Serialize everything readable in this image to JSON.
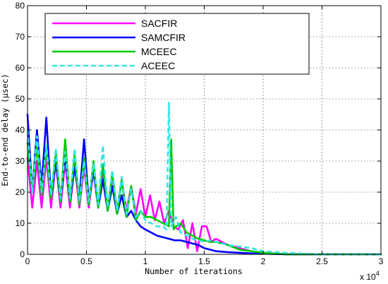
{
  "chart_data": {
    "type": "line",
    "title": "",
    "xlabel": "Number of iterations",
    "ylabel": "End-to-end delay  (μsec)",
    "x_multiplier": "x 10",
    "x_multiplier_exp": "4",
    "xlim": [
      0,
      3
    ],
    "ylim": [
      0,
      80
    ],
    "xticks": [
      0,
      0.5,
      1,
      1.5,
      2,
      2.5,
      3
    ],
    "xtick_labels": [
      "0",
      "0.5",
      "1",
      "1.5",
      "2",
      "2.5",
      "3"
    ],
    "yticks": [
      0,
      10,
      20,
      30,
      40,
      50,
      60,
      70,
      80
    ],
    "ytick_labels": [
      "0",
      "10",
      "20",
      "30",
      "40",
      "50",
      "60",
      "70",
      "80"
    ],
    "grid": true,
    "legend_position": "top-left",
    "series": [
      {
        "name": "SACFIR",
        "color": "#ff00ff",
        "dash": "solid",
        "x": [
          0,
          0.04,
          0.08,
          0.12,
          0.16,
          0.2,
          0.24,
          0.28,
          0.32,
          0.36,
          0.4,
          0.44,
          0.48,
          0.52,
          0.56,
          0.6,
          0.64,
          0.68,
          0.72,
          0.76,
          0.8,
          0.84,
          0.88,
          0.92,
          0.96,
          1.0,
          1.04,
          1.08,
          1.12,
          1.16,
          1.2,
          1.24,
          1.28,
          1.32,
          1.36,
          1.4,
          1.44,
          1.48,
          1.52,
          1.56,
          1.6,
          1.7,
          1.8,
          1.9,
          2.0,
          2.2,
          2.5,
          3.0
        ],
        "y": [
          31,
          15,
          30,
          15,
          31,
          15,
          30,
          15,
          30,
          15,
          29,
          15,
          28,
          15,
          27,
          16,
          26,
          15,
          25,
          14,
          24,
          14,
          22,
          13,
          21,
          12,
          19,
          11,
          17,
          10,
          14,
          9,
          8,
          11,
          2,
          10,
          1,
          9,
          9,
          4,
          5,
          3,
          2,
          1,
          0.5,
          0,
          0,
          0
        ]
      },
      {
        "name": "SAMCFIR",
        "color": "#0000ff",
        "dash": "solid",
        "x": [
          0,
          0.04,
          0.08,
          0.12,
          0.16,
          0.2,
          0.24,
          0.28,
          0.32,
          0.36,
          0.4,
          0.44,
          0.48,
          0.52,
          0.56,
          0.6,
          0.64,
          0.68,
          0.72,
          0.76,
          0.8,
          0.84,
          0.88,
          0.92,
          0.96,
          1.0,
          1.05,
          1.1,
          1.15,
          1.2,
          1.25,
          1.3,
          1.35,
          1.4,
          1.45,
          1.5,
          1.55,
          1.6,
          1.7,
          1.8,
          1.9,
          2.0,
          2.2,
          2.5,
          3.0
        ],
        "y": [
          45,
          20,
          40,
          22,
          44,
          18,
          30,
          17,
          32,
          17,
          28,
          18,
          37,
          17,
          27,
          15,
          24,
          14,
          22,
          13,
          19,
          12,
          14,
          11,
          9,
          8,
          7,
          6,
          5.5,
          5,
          4.5,
          4.5,
          4,
          3.5,
          3,
          2,
          1.5,
          1,
          0.7,
          0.5,
          0.3,
          0.2,
          0,
          0,
          0
        ]
      },
      {
        "name": "MCEEC",
        "color": "#00cc00",
        "dash": "solid",
        "x": [
          0,
          0.04,
          0.08,
          0.12,
          0.16,
          0.2,
          0.24,
          0.28,
          0.32,
          0.36,
          0.4,
          0.44,
          0.48,
          0.52,
          0.56,
          0.6,
          0.64,
          0.68,
          0.72,
          0.76,
          0.8,
          0.84,
          0.88,
          0.92,
          0.96,
          1.0,
          1.05,
          1.1,
          1.15,
          1.2,
          1.22,
          1.24,
          1.26,
          1.3,
          1.35,
          1.4,
          1.45,
          1.5,
          1.55,
          1.6,
          1.65,
          1.7,
          1.8,
          1.9,
          2.0,
          2.2,
          2.5,
          3.0
        ],
        "y": [
          36,
          20,
          35,
          19,
          34,
          18,
          33,
          17,
          37,
          17,
          32,
          16,
          31,
          16,
          30,
          15,
          29,
          14,
          26,
          13,
          24,
          12,
          22,
          11,
          14,
          12,
          12,
          11,
          10,
          9,
          37,
          8,
          9,
          10,
          7,
          6,
          5,
          4.5,
          4,
          4,
          3.5,
          3,
          1.5,
          1,
          0.5,
          0,
          0,
          0
        ]
      },
      {
        "name": "ACEEC",
        "color": "#33e6e6",
        "dash": "dashed",
        "x": [
          0,
          0.04,
          0.08,
          0.12,
          0.16,
          0.2,
          0.24,
          0.28,
          0.32,
          0.36,
          0.4,
          0.44,
          0.48,
          0.52,
          0.56,
          0.6,
          0.64,
          0.68,
          0.72,
          0.76,
          0.8,
          0.84,
          0.88,
          0.92,
          0.96,
          1.0,
          1.05,
          1.1,
          1.15,
          1.18,
          1.2,
          1.22,
          1.26,
          1.3,
          1.35,
          1.4,
          1.45,
          1.5,
          1.55,
          1.6,
          1.7,
          1.8,
          1.9,
          2.0,
          2.2,
          2.5,
          3.0
        ],
        "y": [
          40,
          20,
          38,
          20,
          35,
          19,
          34,
          18,
          33,
          18,
          34,
          17,
          30,
          17,
          29,
          16,
          35,
          15,
          27,
          14,
          25,
          13,
          21,
          12,
          14,
          11,
          10,
          9,
          9,
          8,
          49,
          9,
          12,
          7,
          6,
          5,
          4.5,
          4,
          4.5,
          4,
          3,
          2.5,
          2,
          1,
          0.5,
          0,
          0
        ]
      }
    ]
  }
}
